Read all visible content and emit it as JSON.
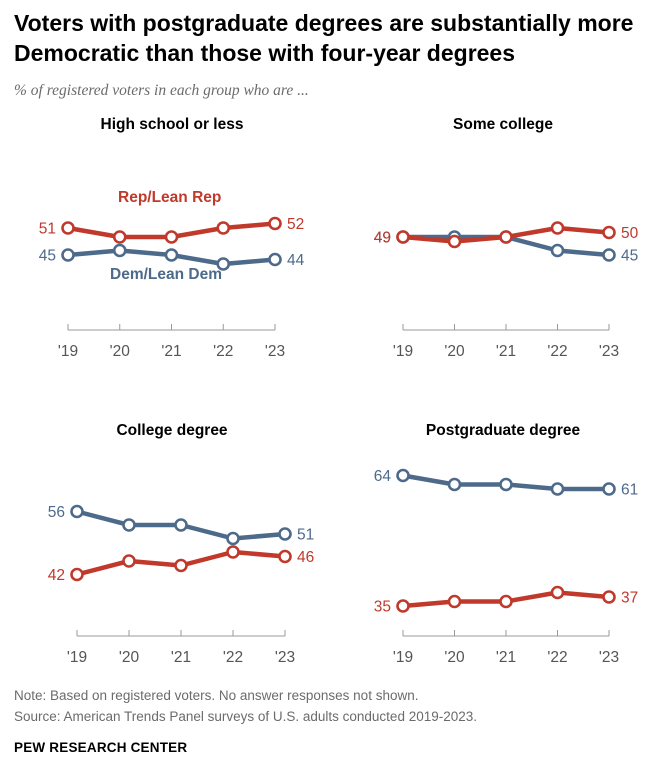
{
  "title": "Voters with postgraduate degrees are substantially more Democratic than those with four-year degrees",
  "subtitle": "% of registered voters in each group who are ...",
  "series_labels": {
    "rep": "Rep/Lean Rep",
    "dem": "Dem/Lean Dem"
  },
  "colors": {
    "rep": "#c0392b",
    "dem": "#4d6a8a",
    "axis": "#999999"
  },
  "notes": {
    "note": "Note: Based on registered voters. No answer responses not shown.",
    "source": "Source: American Trends Panel surveys of U.S. adults conducted 2019-2023."
  },
  "brand": "PEW RESEARCH CENTER",
  "chart_data": [
    {
      "type": "line",
      "title": "High school or less",
      "x": [
        "'19",
        "'20",
        "'21",
        "'22",
        "'23"
      ],
      "series": [
        {
          "name": "Rep/Lean Rep",
          "values": [
            51,
            49,
            49,
            51,
            52
          ]
        },
        {
          "name": "Dem/Lean Dem",
          "values": [
            45,
            46,
            45,
            43,
            44
          ]
        }
      ],
      "end_labels": {
        "rep": [
          "51",
          "52"
        ],
        "dem": [
          "45",
          "44"
        ]
      }
    },
    {
      "type": "line",
      "title": "Some college",
      "x": [
        "'19",
        "'20",
        "'21",
        "'22",
        "'23"
      ],
      "series": [
        {
          "name": "Rep/Lean Rep",
          "values": [
            49,
            48,
            49,
            51,
            50
          ]
        },
        {
          "name": "Dem/Lean Dem",
          "values": [
            49,
            49,
            49,
            46,
            45
          ]
        }
      ],
      "end_labels": {
        "rep": [
          "49",
          "50"
        ],
        "dem": [
          "49",
          "45"
        ]
      }
    },
    {
      "type": "line",
      "title": "College degree",
      "x": [
        "'19",
        "'20",
        "'21",
        "'22",
        "'23"
      ],
      "series": [
        {
          "name": "Rep/Lean Rep",
          "values": [
            42,
            45,
            44,
            47,
            46
          ]
        },
        {
          "name": "Dem/Lean Dem",
          "values": [
            56,
            53,
            53,
            50,
            51
          ]
        }
      ],
      "end_labels": {
        "rep": [
          "42",
          "46"
        ],
        "dem": [
          "56",
          "51"
        ]
      }
    },
    {
      "type": "line",
      "title": "Postgraduate degree",
      "x": [
        "'19",
        "'20",
        "'21",
        "'22",
        "'23"
      ],
      "series": [
        {
          "name": "Rep/Lean Rep",
          "values": [
            35,
            36,
            36,
            38,
            37
          ]
        },
        {
          "name": "Dem/Lean Dem",
          "values": [
            64,
            62,
            62,
            61,
            61
          ]
        }
      ],
      "end_labels": {
        "rep": [
          "35",
          "37"
        ],
        "dem": [
          "64",
          "61"
        ]
      }
    }
  ]
}
